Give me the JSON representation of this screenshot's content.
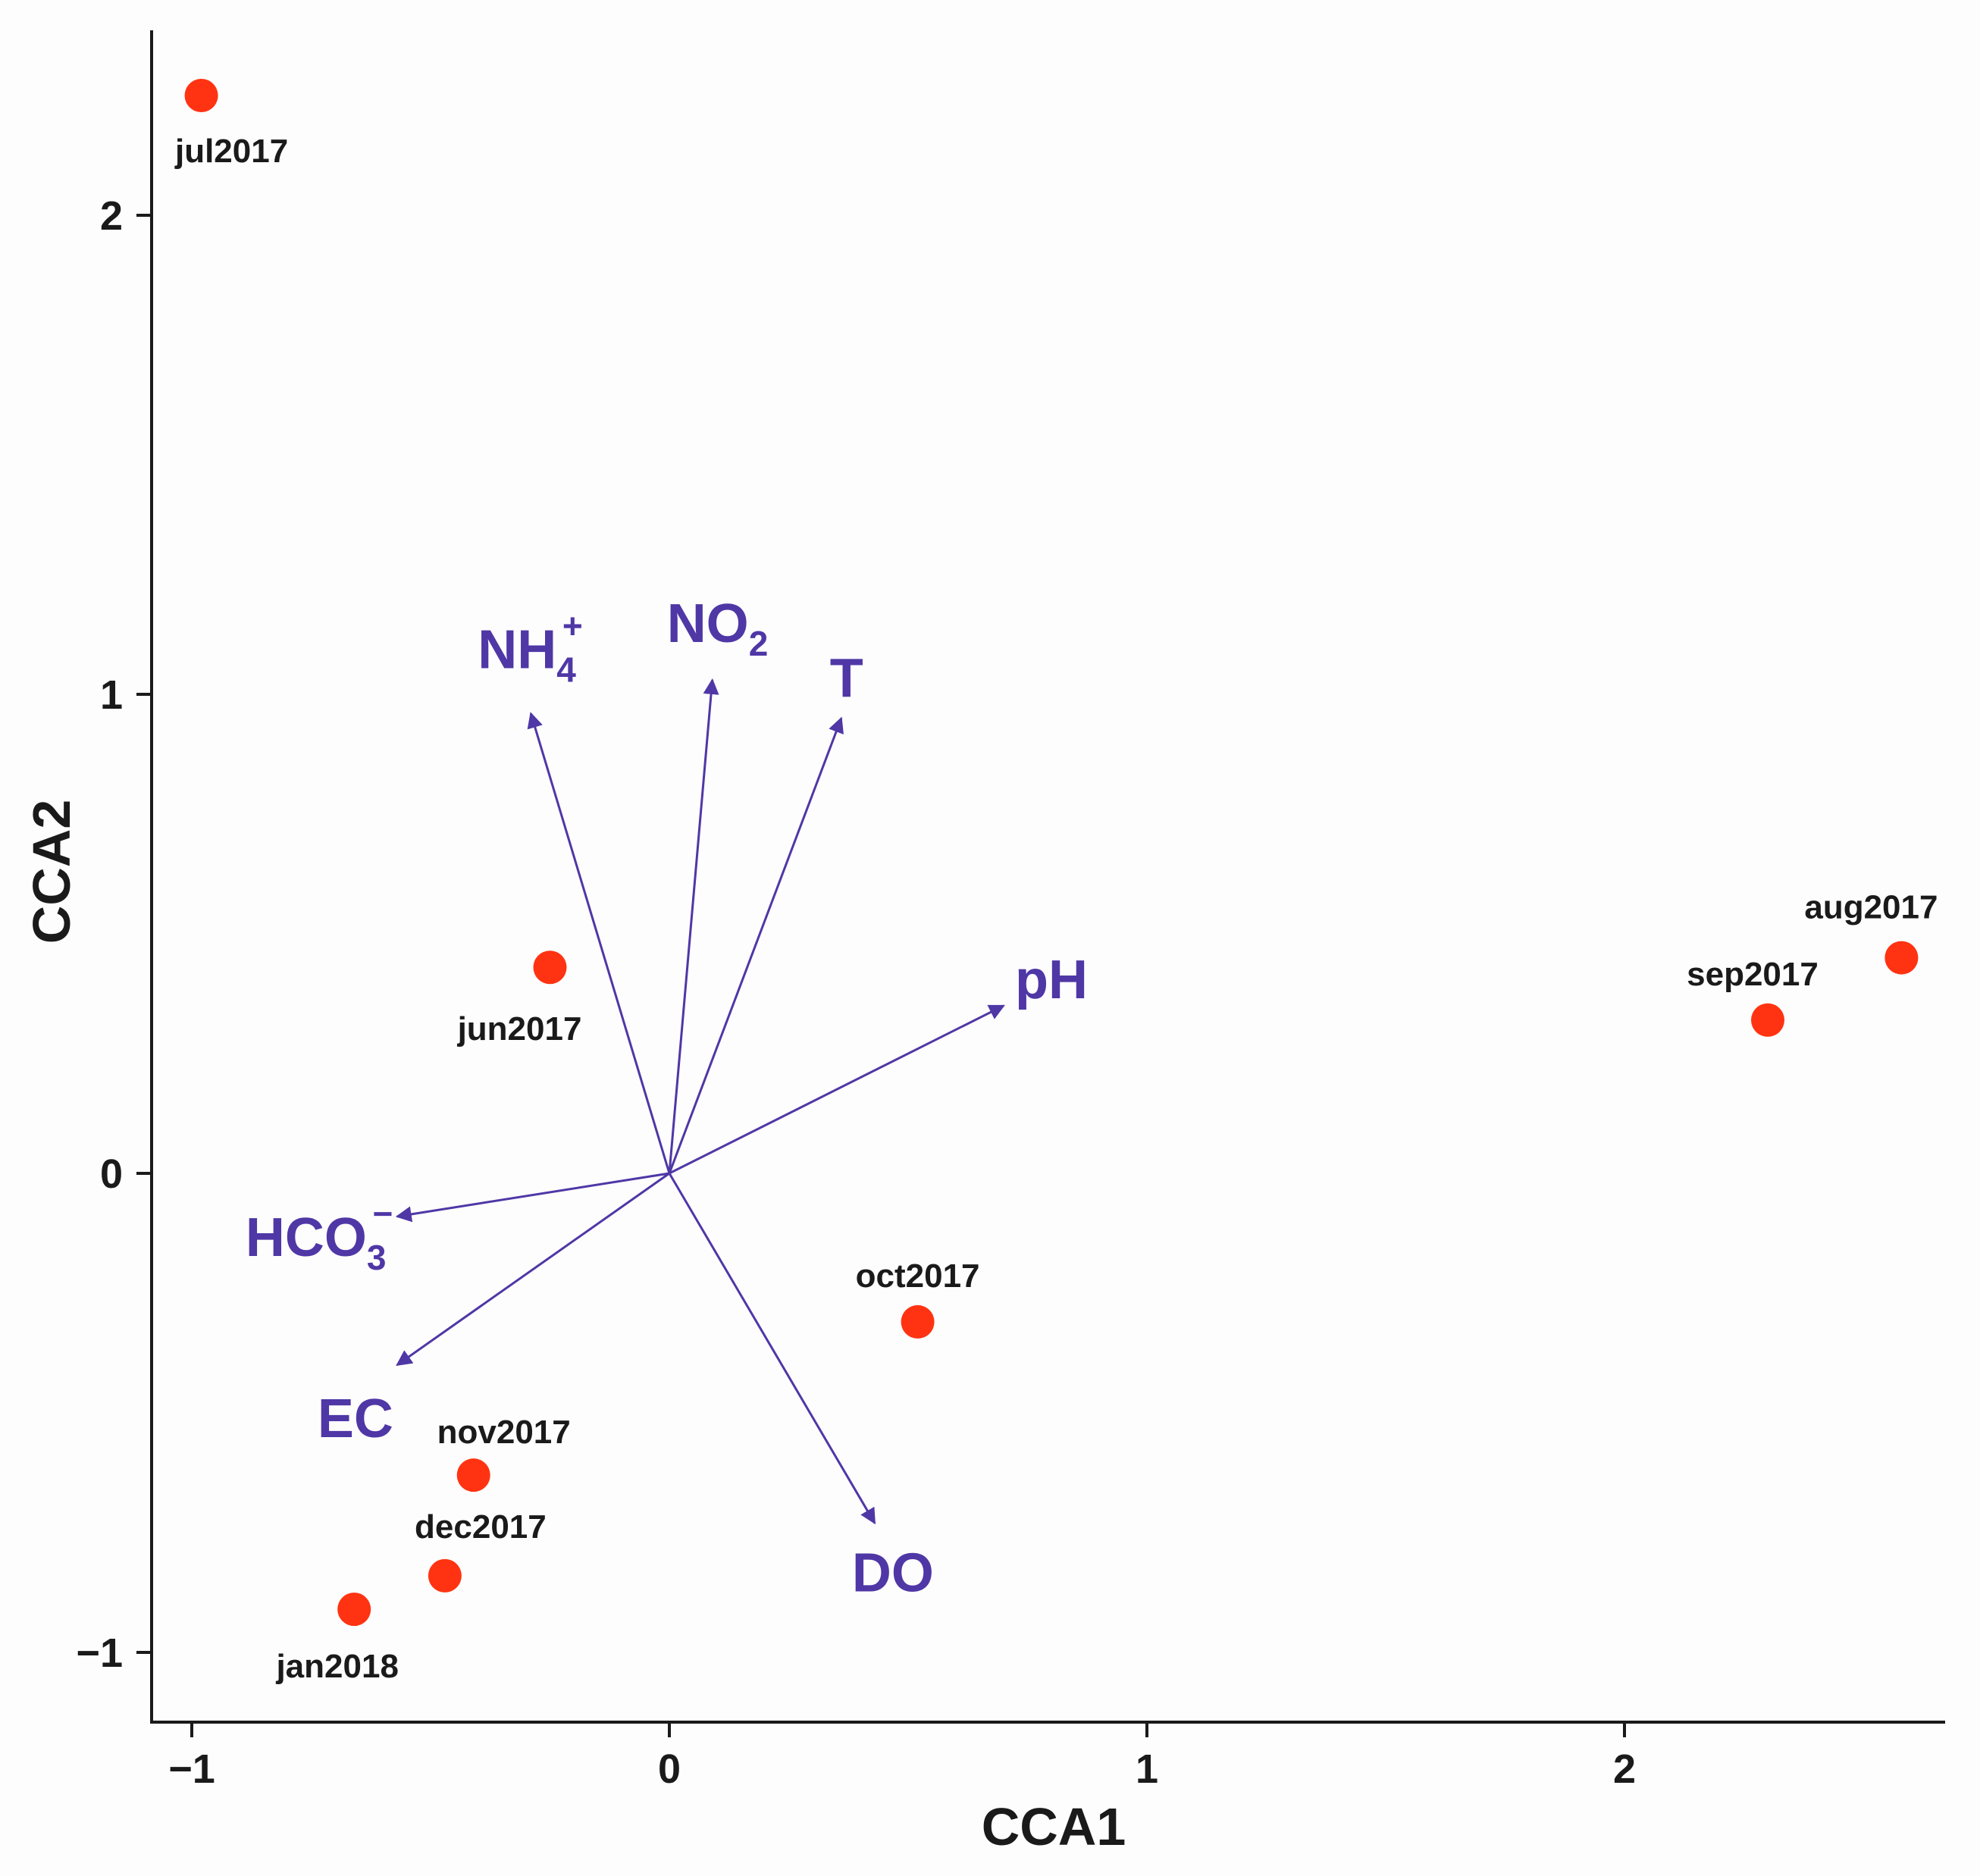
{
  "chart_data": {
    "type": "scatter",
    "title": "",
    "xlabel": "CCA1",
    "ylabel": "CCA2",
    "xlim": [
      -1.1,
      2.65
    ],
    "ylim": [
      -1.14,
      2.4
    ],
    "x_ticks": [
      -1,
      0,
      1,
      2
    ],
    "y_ticks": [
      -1,
      0,
      1,
      2
    ],
    "x_tick_labels": [
      "−1",
      "0",
      "1",
      "2"
    ],
    "y_tick_labels": [
      "−1",
      "0",
      "1",
      "2"
    ],
    "grid": false,
    "colors": {
      "sites": "#ff3311",
      "vectors": "#4f37a6",
      "axes": "#1a1a1a"
    },
    "sites": [
      {
        "name": "jul2017",
        "x": -0.98,
        "y": 2.25
      },
      {
        "name": "jun2017",
        "x": -0.25,
        "y": 0.43
      },
      {
        "name": "aug2017",
        "x": 2.58,
        "y": 0.45
      },
      {
        "name": "sep2017",
        "x": 2.3,
        "y": 0.32
      },
      {
        "name": "oct2017",
        "x": 0.52,
        "y": -0.31
      },
      {
        "name": "nov2017",
        "x": -0.41,
        "y": -0.63
      },
      {
        "name": "dec2017",
        "x": -0.47,
        "y": -0.84
      },
      {
        "name": "jan2018",
        "x": -0.66,
        "y": -0.91
      }
    ],
    "vectors": [
      {
        "name": "NH4+",
        "main": "NH",
        "sub": "4",
        "sup": "+",
        "x": -0.29,
        "y": 0.96
      },
      {
        "name": "NO2",
        "main": "NO",
        "sub": "2",
        "sup": "",
        "x": 0.09,
        "y": 1.03
      },
      {
        "name": "T",
        "main": "T",
        "sub": "",
        "sup": "",
        "x": 0.36,
        "y": 0.95
      },
      {
        "name": "pH",
        "main": "pH",
        "sub": "",
        "sup": "",
        "x": 0.7,
        "y": 0.35
      },
      {
        "name": "HCO3-",
        "main": "HCO",
        "sub": "3",
        "sup": "−",
        "x": -0.57,
        "y": -0.09
      },
      {
        "name": "EC",
        "main": "EC",
        "sub": "",
        "sup": "",
        "x": -0.57,
        "y": -0.4
      },
      {
        "name": "DO",
        "main": "DO",
        "sub": "",
        "sup": "",
        "x": 0.43,
        "y": -0.73
      }
    ]
  }
}
